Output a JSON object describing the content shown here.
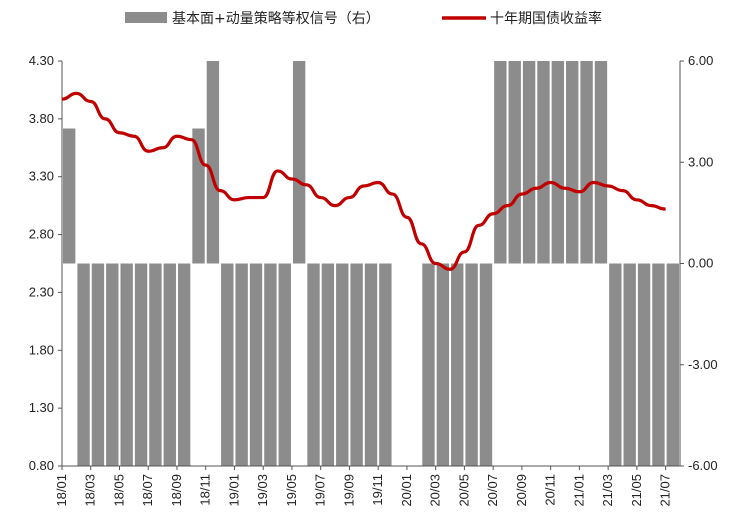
{
  "chart_data": {
    "type": "bar+line",
    "legend": {
      "position": "top",
      "bar_series_label": "基本面+动量策略等权信号（右）",
      "line_series_label": "十年期国债收益率"
    },
    "colors": {
      "bar": "#8c8c8c",
      "line": "#c00000",
      "axis": "#555555"
    },
    "left_axis": {
      "ylim": [
        0.8,
        4.3
      ],
      "ticks": [
        "0.80",
        "1.30",
        "1.80",
        "2.30",
        "2.80",
        "3.30",
        "3.80",
        "4.30"
      ]
    },
    "right_axis": {
      "ylim": [
        -6,
        6
      ],
      "ticks": [
        "-6.00",
        "-3.00",
        "0.00",
        "3.00",
        "6.00"
      ]
    },
    "x_axis": {
      "start": "2018-01",
      "end": "2021-08",
      "tick_labels": [
        "18/01",
        "18/03",
        "18/05",
        "18/07",
        "18/09",
        "18/11",
        "19/01",
        "19/03",
        "19/05",
        "19/07",
        "19/09",
        "19/11",
        "20/01",
        "20/03",
        "20/05",
        "20/07",
        "20/09",
        "20/11",
        "21/01",
        "21/03",
        "21/05",
        "21/07"
      ]
    },
    "signal_series": {
      "name": "基本面+动量策略等权信号（右）",
      "monthly_values": [
        4,
        -6,
        -6,
        -6,
        -6,
        -6,
        -6,
        -6,
        -6,
        4,
        6,
        -6,
        -6,
        -6,
        -6,
        -6,
        6,
        -6,
        -6,
        -6,
        -6,
        -6,
        -6,
        0,
        0,
        -6,
        -6,
        -6,
        -6,
        -6,
        6,
        6,
        6,
        6,
        6,
        6,
        6,
        6,
        -6,
        -6,
        -6,
        -6,
        -6
      ]
    },
    "yield_series": {
      "name": "十年期国债收益率",
      "points": [
        [
          "2018-01",
          3.97
        ],
        [
          "2018-02",
          4.02
        ],
        [
          "2018-03",
          3.95
        ],
        [
          "2018-04",
          3.8
        ],
        [
          "2018-05",
          3.68
        ],
        [
          "2018-06",
          3.65
        ],
        [
          "2018-07",
          3.52
        ],
        [
          "2018-08",
          3.55
        ],
        [
          "2018-09",
          3.65
        ],
        [
          "2018-10",
          3.62
        ],
        [
          "2018-11",
          3.4
        ],
        [
          "2018-12",
          3.18
        ],
        [
          "2019-01",
          3.1
        ],
        [
          "2019-02",
          3.12
        ],
        [
          "2019-03",
          3.12
        ],
        [
          "2019-04",
          3.35
        ],
        [
          "2019-05",
          3.28
        ],
        [
          "2019-06",
          3.23
        ],
        [
          "2019-07",
          3.12
        ],
        [
          "2019-08",
          3.05
        ],
        [
          "2019-09",
          3.12
        ],
        [
          "2019-10",
          3.22
        ],
        [
          "2019-11",
          3.25
        ],
        [
          "2019-12",
          3.15
        ],
        [
          "2020-01",
          2.95
        ],
        [
          "2020-02",
          2.72
        ],
        [
          "2020-03",
          2.55
        ],
        [
          "2020-04",
          2.5
        ],
        [
          "2020-05",
          2.65
        ],
        [
          "2020-06",
          2.88
        ],
        [
          "2020-07",
          2.98
        ],
        [
          "2020-08",
          3.05
        ],
        [
          "2020-09",
          3.15
        ],
        [
          "2020-10",
          3.2
        ],
        [
          "2020-11",
          3.25
        ],
        [
          "2020-12",
          3.2
        ],
        [
          "2021-01",
          3.17
        ],
        [
          "2021-02",
          3.25
        ],
        [
          "2021-03",
          3.22
        ],
        [
          "2021-04",
          3.18
        ],
        [
          "2021-05",
          3.1
        ],
        [
          "2021-06",
          3.05
        ],
        [
          "2021-07",
          3.02
        ]
      ]
    }
  }
}
